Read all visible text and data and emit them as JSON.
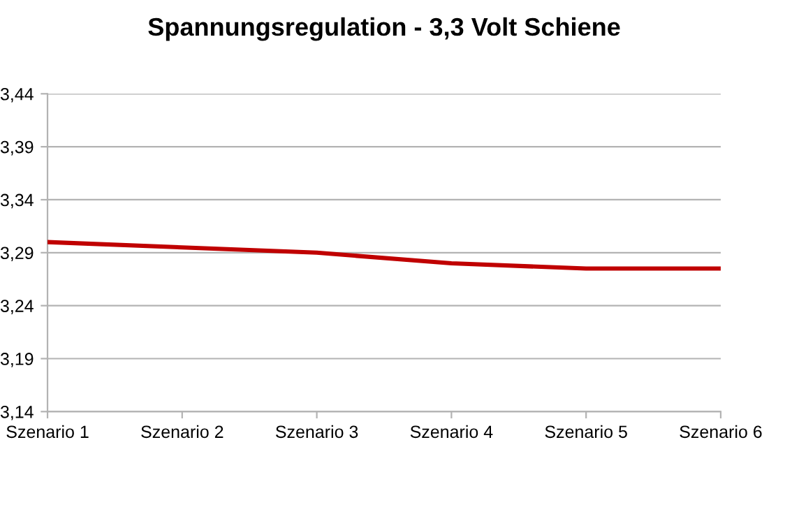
{
  "chart_data": {
    "type": "line",
    "title": "Spannungsregulation - 3,3 Volt Schiene",
    "categories": [
      "Szenario 1",
      "Szenario 2",
      "Szenario 3",
      "Szenario 4",
      "Szenario 5",
      "Szenario 6"
    ],
    "series": [
      {
        "color": "#c00000",
        "values": [
          3.3,
          3.295,
          3.29,
          3.28,
          3.275,
          3.275
        ]
      }
    ],
    "ylim": [
      3.14,
      3.44
    ],
    "yticks": [
      {
        "value": 3.14,
        "label": "3,14"
      },
      {
        "value": 3.19,
        "label": "3,19"
      },
      {
        "value": 3.24,
        "label": "3,24"
      },
      {
        "value": 3.29,
        "label": "3,29"
      },
      {
        "value": 3.34,
        "label": "3,34"
      },
      {
        "value": 3.39,
        "label": "3,39"
      },
      {
        "value": 3.44,
        "label": "3,44"
      }
    ],
    "grid": "y",
    "marker": "none",
    "line_style": "solid"
  }
}
